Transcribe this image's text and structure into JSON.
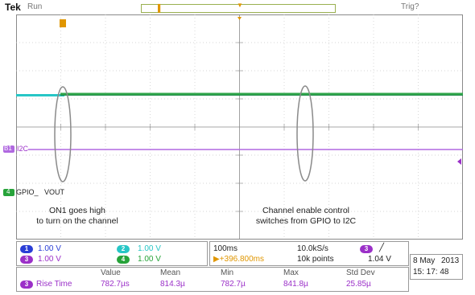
{
  "header": {
    "brand": "Tek",
    "state": "Run",
    "trigger_status": "Trig?"
  },
  "channels": {
    "ch1": {
      "label": "1",
      "scale": "1.00 V",
      "color": "#2a3ed6"
    },
    "ch2": {
      "label": "2",
      "scale": "1.00 V",
      "color": "#27c6c6"
    },
    "ch3": {
      "label": "3",
      "scale": "1.00 V",
      "color": "#9b30c8"
    },
    "ch4": {
      "label": "4",
      "scale": "1.00 V",
      "color": "#27a33a"
    }
  },
  "markers": {
    "ch3_ref": "B1",
    "i2c_label": "I2C",
    "gpio_label": "GPIO_",
    "vout_label": "VOUT",
    "ch4_ref": "4",
    "trigger_position": "T"
  },
  "annotations": {
    "left": [
      "ON1 goes high",
      "to turn on the channel"
    ],
    "right": [
      "Channel enable control",
      "switches from GPIO to I2C"
    ]
  },
  "timebase": {
    "time_div": "100ms",
    "sample_rate": "10.0kS/s",
    "delay": "▶+396.800ms",
    "record_length": "10k points",
    "trigger_source": "3",
    "trigger_slope": "╱",
    "trigger_level": "1.04 V"
  },
  "datetime": {
    "date": "8 May",
    "year": "2013",
    "time": "15: 17: 48"
  },
  "measurement": {
    "headers": [
      "Value",
      "Mean",
      "Min",
      "Max",
      "Std Dev"
    ],
    "label": "Rise Time",
    "source": "3",
    "values": [
      "782.7µs",
      "814.3µ",
      "782.7µ",
      "841.8µ",
      "25.85µ"
    ]
  }
}
